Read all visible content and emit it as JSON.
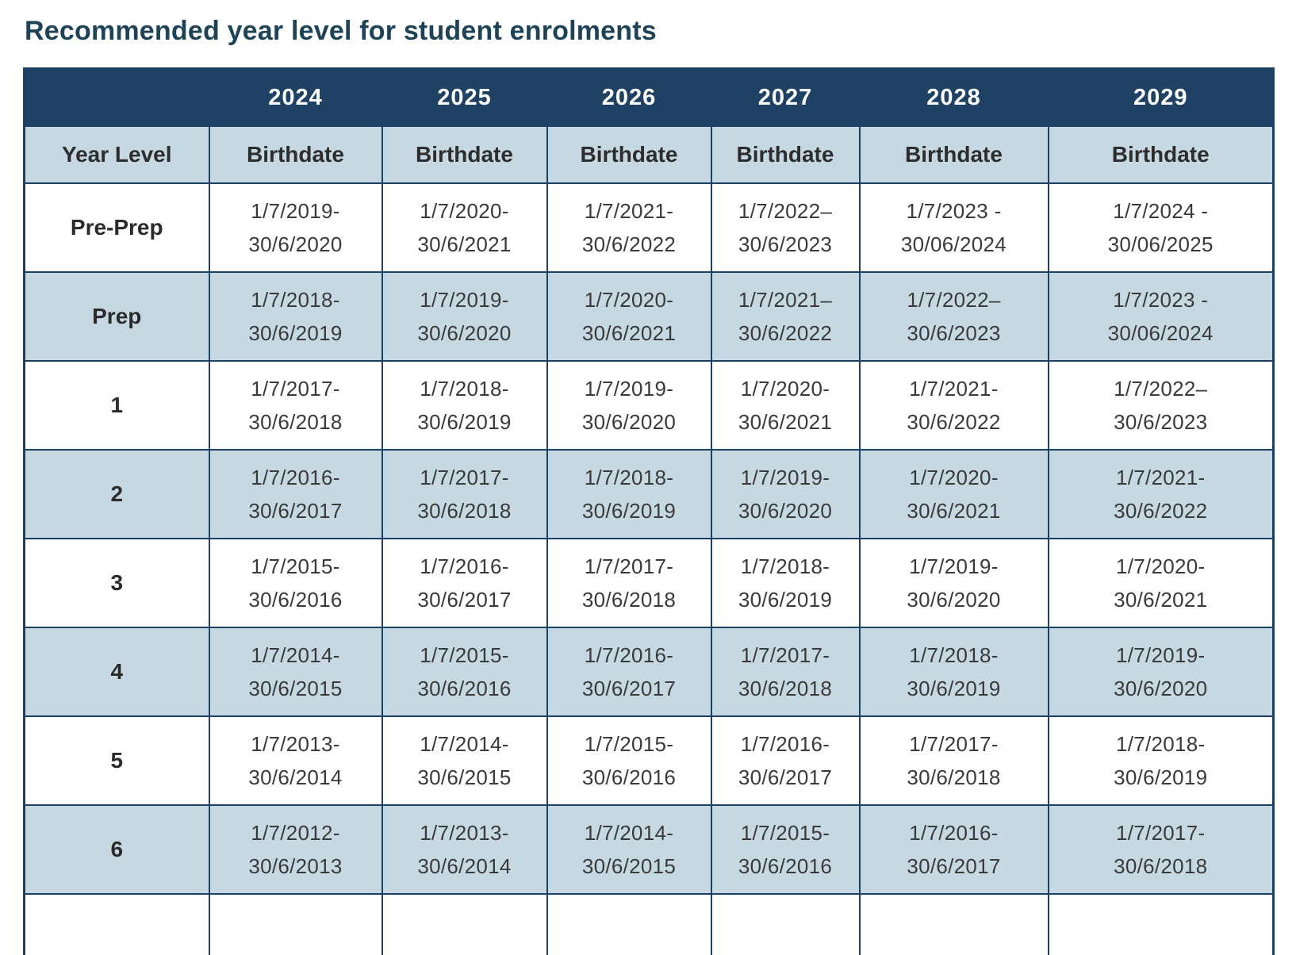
{
  "page": {
    "title": "Recommended year level for student enrolments"
  },
  "colors": {
    "title_text": "#1e4357",
    "header_bg": "#1e4164",
    "header_text": "#ffffff",
    "shaded_row_bg": "#c6d9e3",
    "plain_row_bg": "#ffffff",
    "border": "#1d4163",
    "cell_text": "#3a3a3a"
  },
  "table": {
    "year_headers": [
      "2024",
      "2025",
      "2026",
      "2027",
      "2028",
      "2029"
    ],
    "corner_label": "",
    "col0_header": "Year Level",
    "birthdate_headers": [
      "Birthdate",
      "Birthdate",
      "Birthdate",
      "Birthdate",
      "Birthdate",
      "Birthdate"
    ],
    "rows": [
      {
        "label": "Pre-Prep",
        "shaded": false,
        "dates": [
          "1/7/2019-\n30/6/2020",
          "1/7/2020-\n30/6/2021",
          "1/7/2021-\n30/6/2022",
          "1/7/2022–\n30/6/2023",
          "1/7/2023 -\n30/06/2024",
          "1/7/2024 -\n30/06/2025"
        ]
      },
      {
        "label": "Prep",
        "shaded": true,
        "dates": [
          "1/7/2018-\n30/6/2019",
          "1/7/2019-\n30/6/2020",
          "1/7/2020-\n30/6/2021",
          "1/7/2021–\n30/6/2022",
          "1/7/2022–\n30/6/2023",
          "1/7/2023 -\n30/06/2024"
        ]
      },
      {
        "label": "1",
        "shaded": false,
        "dates": [
          "1/7/2017-\n30/6/2018",
          "1/7/2018-\n30/6/2019",
          "1/7/2019-\n30/6/2020",
          "1/7/2020-\n30/6/2021",
          "1/7/2021-\n30/6/2022",
          "1/7/2022–\n30/6/2023"
        ]
      },
      {
        "label": "2",
        "shaded": true,
        "dates": [
          "1/7/2016-\n30/6/2017",
          "1/7/2017-\n30/6/2018",
          "1/7/2018-\n30/6/2019",
          "1/7/2019-\n30/6/2020",
          "1/7/2020-\n30/6/2021",
          "1/7/2021-\n30/6/2022"
        ]
      },
      {
        "label": "3",
        "shaded": false,
        "dates": [
          "1/7/2015-\n30/6/2016",
          "1/7/2016-\n30/6/2017",
          "1/7/2017-\n30/6/2018",
          "1/7/2018-\n30/6/2019",
          "1/7/2019-\n30/6/2020",
          "1/7/2020-\n30/6/2021"
        ]
      },
      {
        "label": "4",
        "shaded": true,
        "dates": [
          "1/7/2014-\n30/6/2015",
          "1/7/2015-\n30/6/2016",
          "1/7/2016-\n30/6/2017",
          "1/7/2017-\n30/6/2018",
          "1/7/2018-\n30/6/2019",
          "1/7/2019-\n30/6/2020"
        ]
      },
      {
        "label": "5",
        "shaded": false,
        "dates": [
          "1/7/2013-\n30/6/2014",
          "1/7/2014-\n30/6/2015",
          "1/7/2015-\n30/6/2016",
          "1/7/2016-\n30/6/2017",
          "1/7/2017-\n30/6/2018",
          "1/7/2018-\n30/6/2019"
        ]
      },
      {
        "label": "6",
        "shaded": true,
        "dates": [
          "1/7/2012-\n30/6/2013",
          "1/7/2013-\n30/6/2014",
          "1/7/2014-\n30/6/2015",
          "1/7/2015-\n30/6/2016",
          "1/7/2016-\n30/6/2017",
          "1/7/2017-\n30/6/2018"
        ]
      },
      {
        "label": "",
        "shaded": false,
        "partial": true,
        "dates": [
          "",
          "",
          "",
          "",
          "",
          ""
        ]
      }
    ]
  }
}
